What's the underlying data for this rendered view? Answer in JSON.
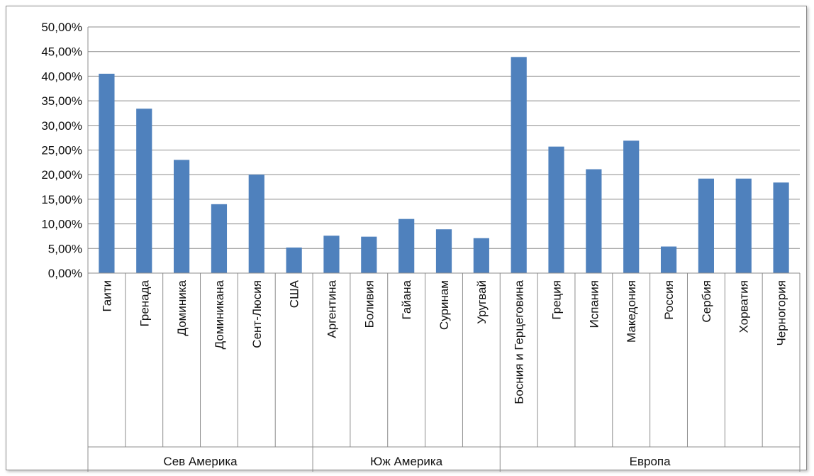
{
  "chart_data": {
    "type": "bar",
    "title": "",
    "xlabel": "",
    "ylabel": "",
    "ylim": [
      0,
      0.5
    ],
    "y_ticks": [
      "0,00%",
      "5,00%",
      "10,00%",
      "15,00%",
      "20,00%",
      "25,00%",
      "30,00%",
      "35,00%",
      "40,00%",
      "45,00%",
      "50,00%"
    ],
    "y_tick_values": [
      0,
      0.05,
      0.1,
      0.15,
      0.2,
      0.25,
      0.3,
      0.35,
      0.4,
      0.45,
      0.5
    ],
    "grid": true,
    "legend": "none",
    "bar_color": "#4f81bd",
    "categories": [
      "Гаити",
      "Гренада",
      "Доминика",
      "Доминикана",
      "Сент-Люсия",
      "США",
      "Аргентина",
      "Боливия",
      "Гайана",
      "Суринам",
      "Уругвай",
      "Босния и Герцеговина",
      "Греция",
      "Испания",
      "Македония",
      "Россия",
      "Сербия",
      "Хорватия",
      "Черногория"
    ],
    "values": [
      0.405,
      0.334,
      0.23,
      0.14,
      0.2,
      0.052,
      0.076,
      0.074,
      0.11,
      0.089,
      0.071,
      0.439,
      0.257,
      0.211,
      0.269,
      0.054,
      0.192,
      0.192,
      0.184
    ],
    "groups": [
      {
        "label": "Сев Америка",
        "count": 6
      },
      {
        "label": "Юж Америка",
        "count": 5
      },
      {
        "label": "Европа",
        "count": 8
      }
    ]
  }
}
